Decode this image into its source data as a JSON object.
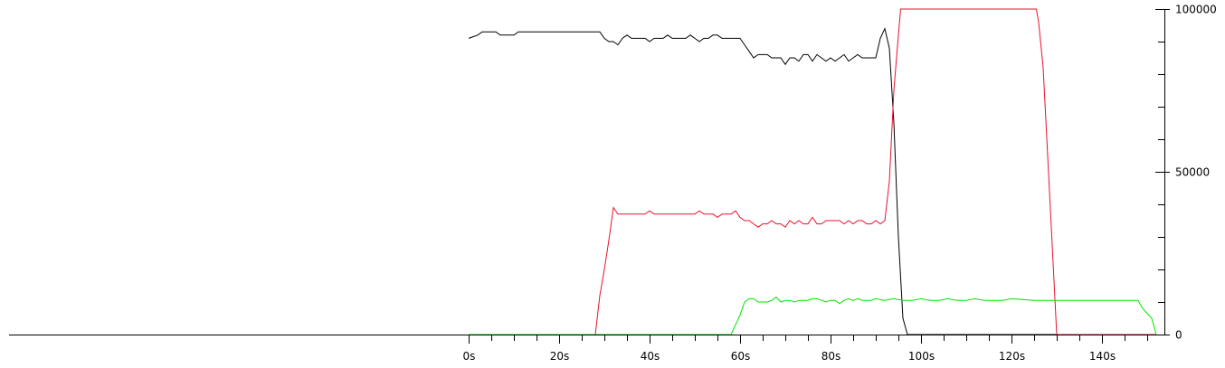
{
  "chart_data": {
    "type": "line",
    "title": "",
    "xlabel": "",
    "ylabel": "",
    "xlim": [
      0,
      153
    ],
    "ylim": [
      0,
      100000
    ],
    "x_ticks": [
      {
        "value": 0,
        "label": "0s"
      },
      {
        "value": 20,
        "label": "20s"
      },
      {
        "value": 40,
        "label": "40s"
      },
      {
        "value": 60,
        "label": "60s"
      },
      {
        "value": 80,
        "label": "80s"
      },
      {
        "value": 100,
        "label": "100s"
      },
      {
        "value": 120,
        "label": "120s"
      },
      {
        "value": 140,
        "label": "140s"
      }
    ],
    "x_minor_tick_step": 5,
    "y_ticks": [
      {
        "value": 0,
        "label": "0"
      },
      {
        "value": 50000,
        "label": "50000"
      },
      {
        "value": 100000,
        "label": "100000"
      }
    ],
    "y_minor_tick_step": 10000,
    "y_axis_side": "right",
    "grid": false,
    "legend": "none",
    "series": [
      {
        "color": "#000000",
        "x": [
          0,
          1,
          2,
          3,
          4,
          5,
          6,
          7,
          8,
          9,
          10,
          11,
          12,
          13,
          14,
          15,
          16,
          17,
          18,
          19,
          20,
          21,
          22,
          23,
          24,
          25,
          26,
          27,
          28,
          29,
          30,
          31,
          32,
          33,
          34,
          35,
          36,
          37,
          38,
          39,
          40,
          41,
          42,
          43,
          44,
          45,
          46,
          47,
          48,
          49,
          50,
          51,
          52,
          53,
          54,
          55,
          56,
          57,
          58,
          59,
          60,
          61,
          62,
          63,
          64,
          65,
          66,
          67,
          68,
          69,
          70,
          71,
          72,
          73,
          74,
          75,
          76,
          77,
          78,
          79,
          80,
          81,
          82,
          83,
          84,
          85,
          86,
          87,
          88,
          89,
          90,
          91,
          92,
          93,
          94,
          95,
          96,
          97,
          98,
          100,
          110,
          120,
          130,
          140,
          150,
          152
        ],
        "y": [
          91000,
          91500,
          92000,
          93000,
          93000,
          93000,
          93000,
          92000,
          92000,
          92000,
          92000,
          93000,
          93000,
          93000,
          93000,
          93000,
          93000,
          93000,
          93000,
          93000,
          93000,
          93000,
          93000,
          93000,
          93000,
          93000,
          93000,
          93000,
          93000,
          93000,
          91000,
          90000,
          90000,
          89000,
          91000,
          92000,
          91000,
          91000,
          91000,
          91000,
          90000,
          91000,
          91000,
          91000,
          92000,
          91000,
          91000,
          91000,
          91000,
          92000,
          91000,
          90000,
          91000,
          91000,
          92000,
          92000,
          91000,
          91000,
          91000,
          91000,
          91000,
          89000,
          87000,
          85000,
          86000,
          86000,
          86000,
          85000,
          85000,
          85000,
          83000,
          85000,
          85000,
          84000,
          86000,
          86000,
          84000,
          86000,
          85000,
          84000,
          85000,
          84000,
          85000,
          86000,
          84000,
          85000,
          86000,
          85000,
          85000,
          85000,
          85000,
          91000,
          94000,
          88000,
          65000,
          30000,
          5000,
          0,
          0,
          0,
          0,
          0,
          0,
          0,
          0,
          0
        ]
      },
      {
        "color": "#e8112d",
        "x": [
          0,
          10,
          20,
          28,
          29,
          30,
          31,
          32,
          33,
          34,
          35,
          36,
          37,
          38,
          39,
          40,
          41,
          42,
          43,
          44,
          45,
          46,
          47,
          48,
          49,
          50,
          51,
          52,
          53,
          54,
          55,
          56,
          57,
          58,
          59,
          60,
          61,
          62,
          63,
          64,
          65,
          66,
          67,
          68,
          69,
          70,
          71,
          72,
          73,
          74,
          75,
          76,
          77,
          78,
          79,
          80,
          81,
          82,
          83,
          84,
          85,
          86,
          87,
          88,
          89,
          90,
          91,
          92,
          93,
          94,
          95,
          95.5,
          125.5,
          126,
          127,
          128,
          130,
          152
        ],
        "y": [
          0,
          0,
          0,
          0,
          12000,
          20000,
          29000,
          39000,
          37000,
          37000,
          37000,
          37000,
          37000,
          37000,
          37000,
          38000,
          37000,
          37000,
          37000,
          37000,
          37000,
          37000,
          37000,
          37000,
          37000,
          37000,
          38000,
          37000,
          37000,
          37000,
          36000,
          37000,
          37000,
          37000,
          38000,
          36000,
          35000,
          35000,
          34000,
          33000,
          34000,
          34000,
          35000,
          34000,
          34000,
          33000,
          35000,
          34000,
          35000,
          34000,
          34000,
          36000,
          34000,
          34000,
          35000,
          35000,
          35000,
          35000,
          34000,
          35000,
          34000,
          35000,
          35000,
          34000,
          34000,
          35000,
          34000,
          35000,
          47000,
          75000,
          92000,
          100000,
          100000,
          96000,
          82000,
          55000,
          0,
          0
        ]
      },
      {
        "color": "#00e600",
        "x": [
          0,
          10,
          20,
          30,
          40,
          50,
          58,
          59,
          60,
          61,
          62,
          63,
          64,
          65,
          66,
          67,
          68,
          69,
          70,
          71,
          72,
          73,
          74,
          75,
          76,
          77,
          78,
          79,
          80,
          81,
          82,
          83,
          84,
          85,
          86,
          87,
          88,
          89,
          90,
          92,
          94,
          96,
          98,
          100,
          102,
          104,
          106,
          108,
          110,
          112,
          114,
          116,
          118,
          120,
          125,
          130,
          135,
          140,
          145,
          148,
          149,
          150,
          151,
          152
        ],
        "y": [
          0,
          0,
          0,
          0,
          0,
          0,
          0,
          3000,
          6000,
          10000,
          11000,
          11000,
          10000,
          10000,
          10000,
          10500,
          11500,
          10000,
          10500,
          10500,
          10000,
          10500,
          10500,
          10500,
          11000,
          11000,
          10500,
          10000,
          10500,
          10500,
          9500,
          10500,
          11000,
          10500,
          11000,
          10500,
          10500,
          10500,
          11000,
          10500,
          11000,
          10500,
          10500,
          11000,
          10500,
          10500,
          11000,
          10500,
          10500,
          11000,
          10500,
          10500,
          10500,
          11000,
          10500,
          10500,
          10500,
          10500,
          10500,
          10500,
          8000,
          6500,
          5000,
          0
        ]
      }
    ]
  }
}
